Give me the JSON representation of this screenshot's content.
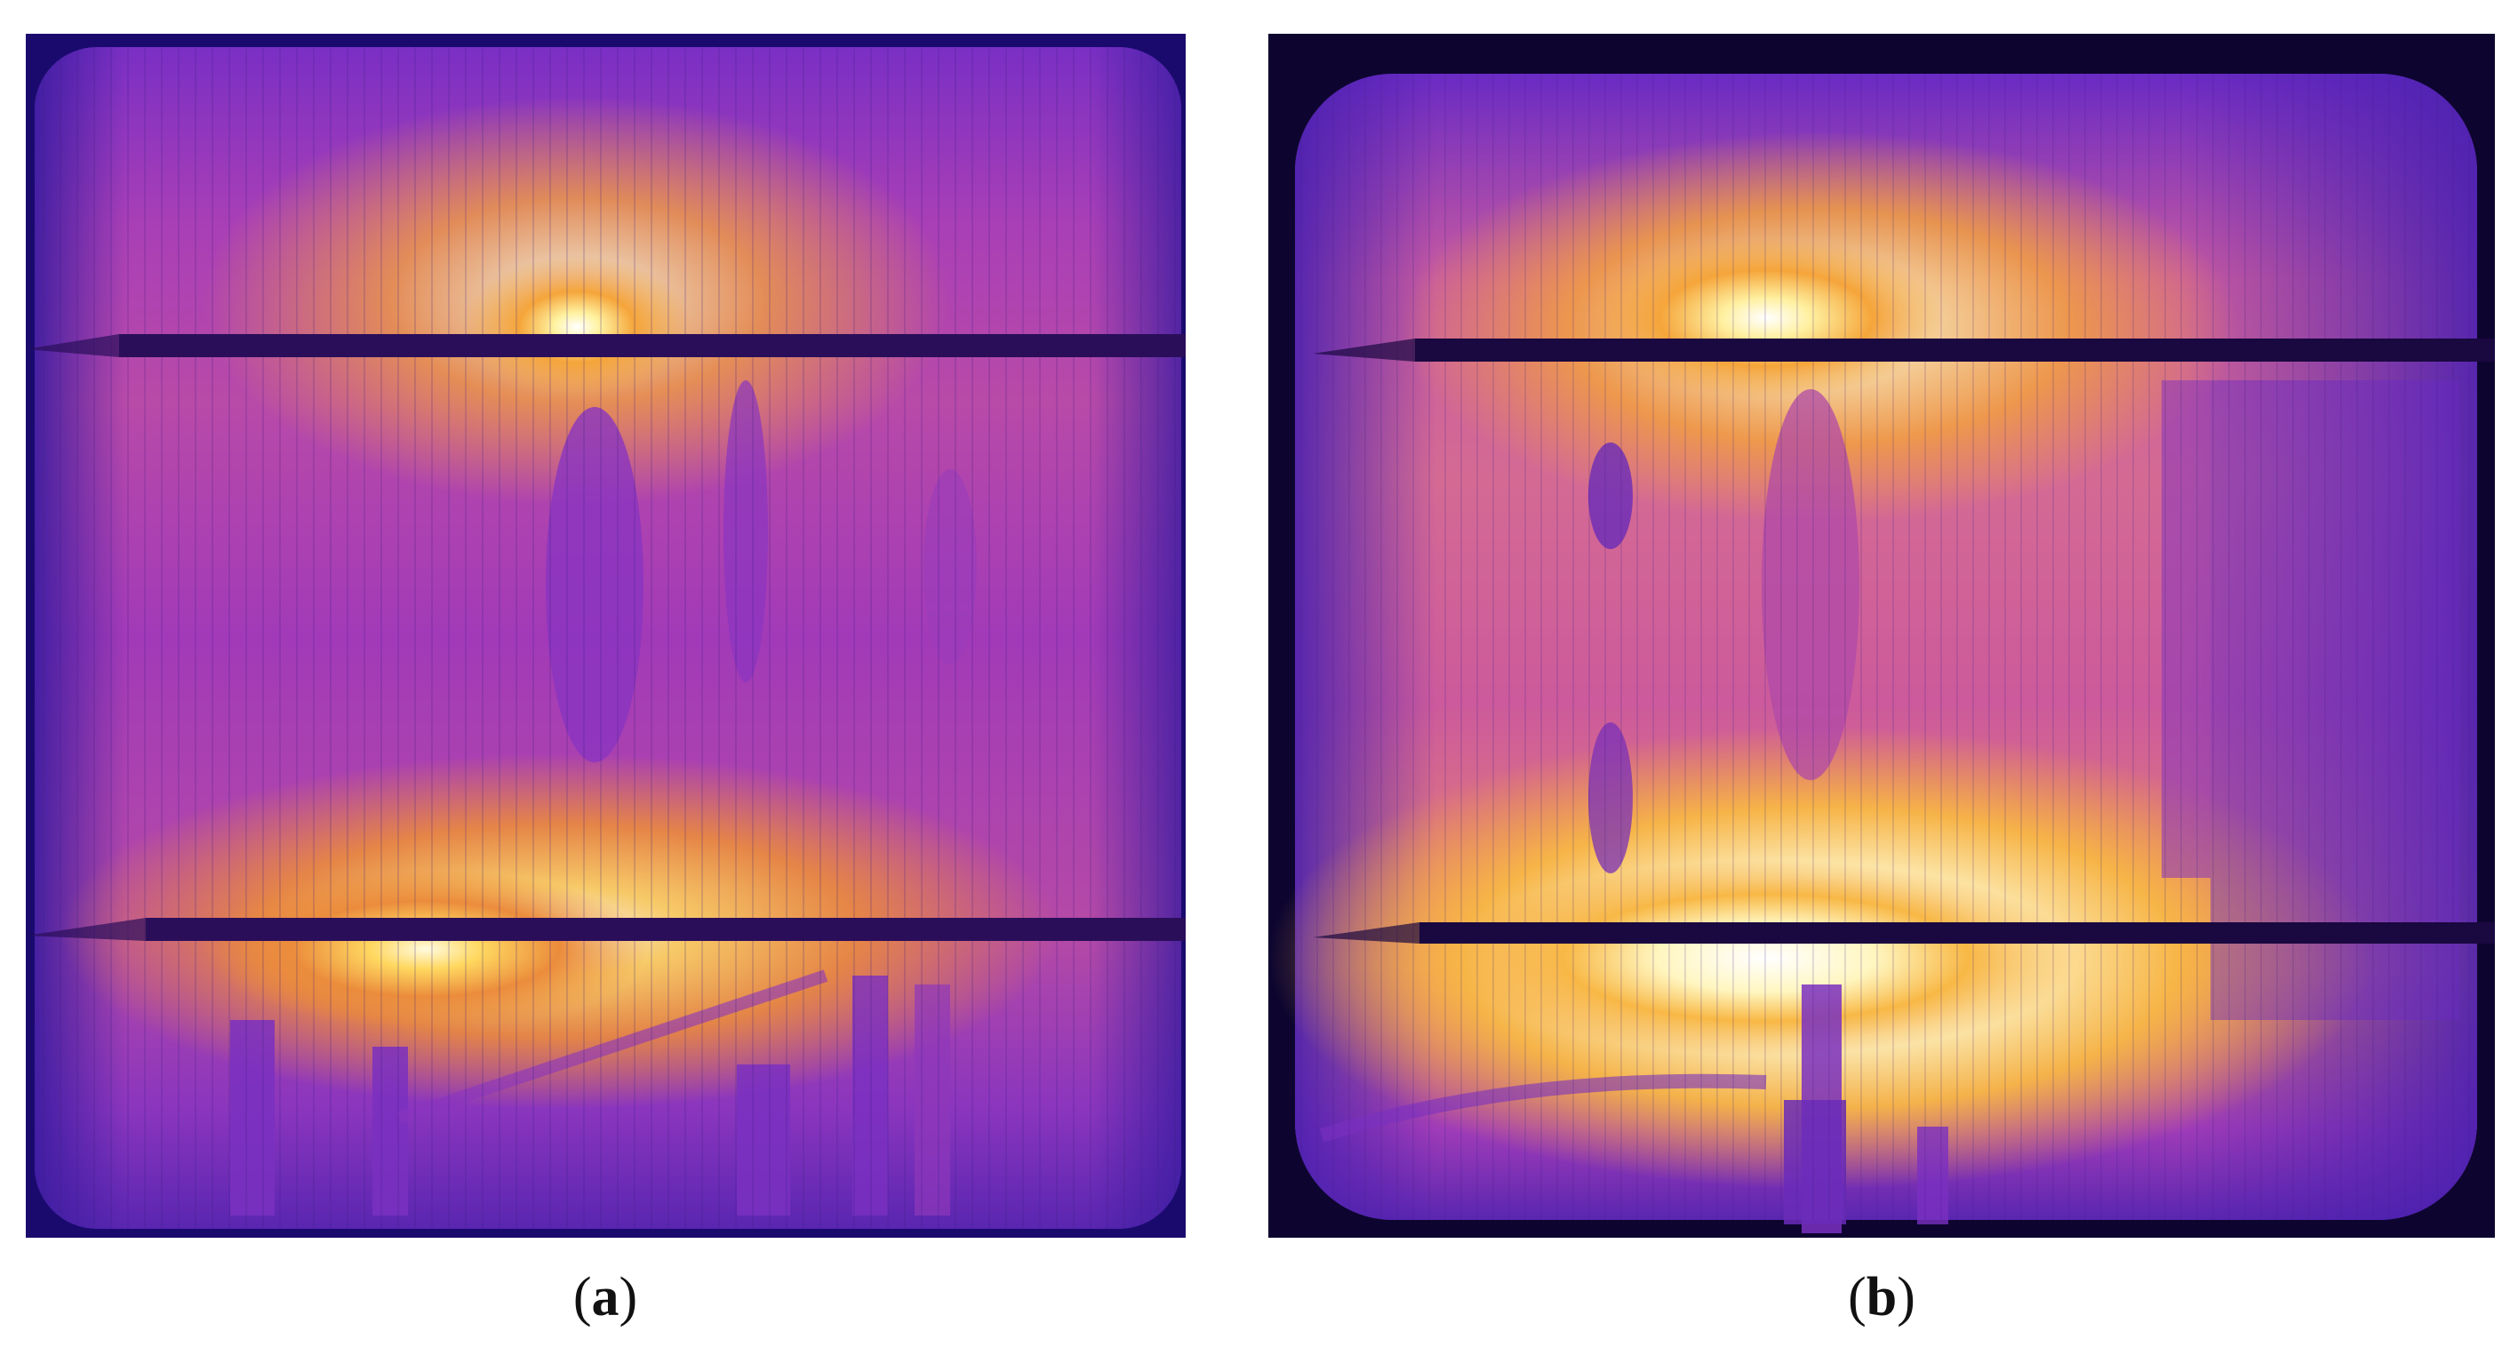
{
  "figure": {
    "panels": [
      {
        "id": "a",
        "caption_open": "(",
        "caption_letter": "a",
        "caption_close": ")"
      },
      {
        "id": "b",
        "caption_open": "(",
        "caption_letter": "b",
        "caption_close": ")"
      }
    ],
    "colormap": [
      "#1a0a6e",
      "#5a1fb0",
      "#9a2ab8",
      "#d0609a",
      "#f5a53a",
      "#ffe070",
      "#ffffff"
    ]
  }
}
